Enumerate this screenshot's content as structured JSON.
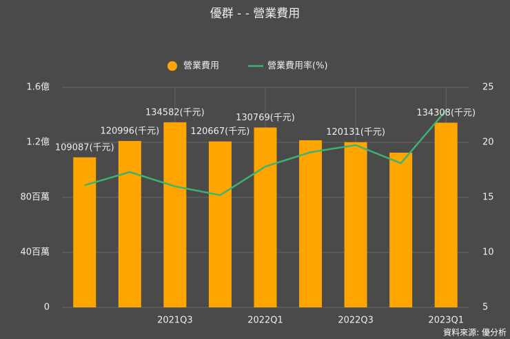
{
  "chart_data": {
    "type": "bar_line",
    "title": "優群 - - 營業費用",
    "categories": [
      null,
      null,
      "2021Q3",
      null,
      "2022Q1",
      null,
      "2022Q3",
      null,
      "2023Q1"
    ],
    "series": [
      {
        "name": "營業費用",
        "type": "bar",
        "color": "#ffa500",
        "values": [
          109087,
          120996,
          134582,
          120667,
          130769,
          121500,
          120131,
          112500,
          134308
        ],
        "value_labels": [
          "109087(千元)",
          "120996(千元)",
          "134582(千元)",
          "120667(千元)",
          "130769(千元)",
          null,
          "120131(千元)",
          null,
          "134308(千元)"
        ]
      },
      {
        "name": "營業費用率(%)",
        "type": "line",
        "axis": "y2",
        "color": "#3cb371",
        "values": [
          16.1,
          17.3,
          16.0,
          15.2,
          17.8,
          19.1,
          19.75,
          18.1,
          22.9
        ]
      }
    ],
    "ylim": [
      0,
      160000
    ],
    "yticks": [
      0,
      {
        "value": 40000,
        "label": "40百萬"
      },
      {
        "value": 80000,
        "label": "80百萬"
      },
      {
        "value": 120000,
        "label": "1.2億"
      },
      {
        "value": 160000,
        "label": "1.6億"
      }
    ],
    "y2lim": [
      5,
      25
    ],
    "y2ticks": [
      5,
      10,
      15,
      20,
      25
    ],
    "grid": true,
    "source": "資料來源: 優分析"
  }
}
